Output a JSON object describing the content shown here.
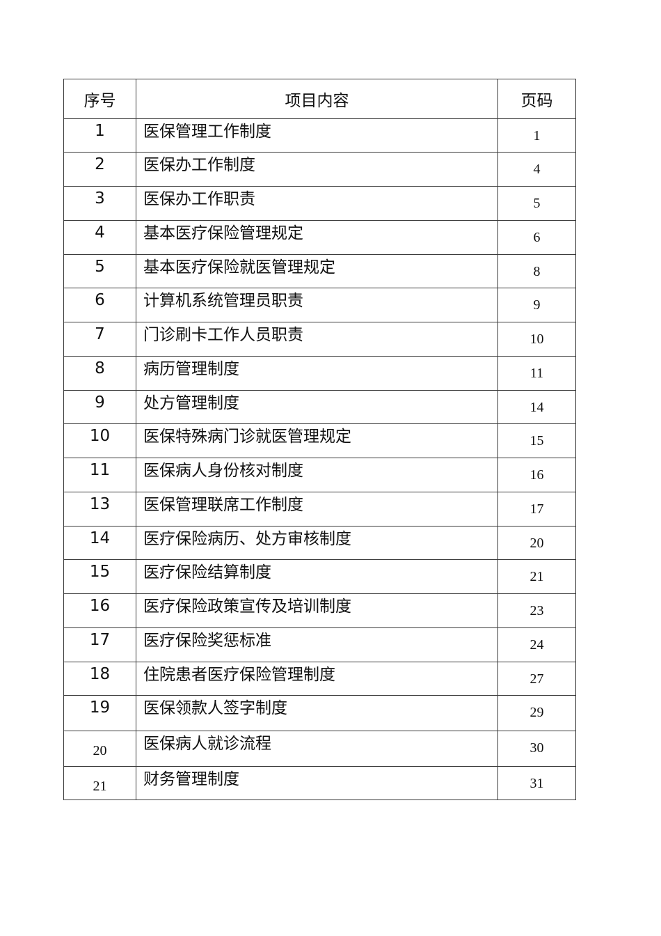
{
  "table": {
    "headers": {
      "no": "序号",
      "item": "项目内容",
      "page": "页码"
    },
    "rows": [
      {
        "no": "1",
        "item": "医保管理工作制度",
        "page": "1"
      },
      {
        "no": "2",
        "item": "医保办工作制度",
        "page": "4"
      },
      {
        "no": "3",
        "item": "医保办工作职责",
        "page": "5"
      },
      {
        "no": "4",
        "item": "基本医疗保险管理规定",
        "page": "6"
      },
      {
        "no": "5",
        "item": "基本医疗保险就医管理规定",
        "page": "8"
      },
      {
        "no": "6",
        "item": "计算机系统管理员职责",
        "page": "9"
      },
      {
        "no": "7",
        "item": "门诊刷卡工作人员职责",
        "page": "10"
      },
      {
        "no": "8",
        "item": "病历管理制度",
        "page": "11"
      },
      {
        "no": "9",
        "item": "处方管理制度",
        "page": "14"
      },
      {
        "no": "10",
        "item": "医保特殊病门诊就医管理规定",
        "page": "15"
      },
      {
        "no": "11",
        "item": "医保病人身份核对制度",
        "page": "16"
      },
      {
        "no": "13",
        "item": "医保管理联席工作制度",
        "page": "17"
      },
      {
        "no": "14",
        "item": "医疗保险病历、处方审核制度",
        "page": "20"
      },
      {
        "no": "15",
        "item": "医疗保险结算制度",
        "page": "21"
      },
      {
        "no": "16",
        "item": "医疗保险政策宣传及培训制度",
        "page": "23"
      },
      {
        "no": "17",
        "item": "医疗保险奖惩标准",
        "page": "24"
      },
      {
        "no": "18",
        "item": "住院患者医疗保险管理制度",
        "page": "27"
      },
      {
        "no": "19",
        "item": "医保领款人签字制度",
        "page": "29"
      },
      {
        "no": "20",
        "item": "医保病人就诊流程",
        "page": "30"
      },
      {
        "no": "21",
        "item": "财务管理制度",
        "page": "31"
      }
    ]
  }
}
